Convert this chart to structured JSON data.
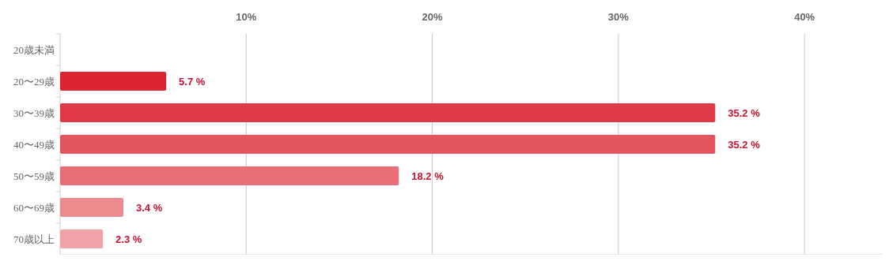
{
  "chart_data": {
    "type": "bar",
    "orientation": "horizontal",
    "categories": [
      "20歳未満",
      "20〜29歳",
      "30〜39歳",
      "40〜49歳",
      "50〜59歳",
      "60〜69歳",
      "70歳以上"
    ],
    "values": [
      0,
      5.7,
      35.2,
      35.2,
      18.2,
      3.4,
      2.3
    ],
    "value_labels": [
      null,
      "5.7 %",
      "35.2 %",
      "35.2 %",
      "18.2 %",
      "3.4 %",
      "2.3 %"
    ],
    "colors": [
      "#dc2430",
      "#dc2430",
      "#e03a47",
      "#e4545f",
      "#e86f77",
      "#ec8a8f",
      "#f0a2a6"
    ],
    "xlim": [
      0,
      44.2
    ],
    "xticks": [
      {
        "value": 10,
        "label": "10%"
      },
      {
        "value": 20,
        "label": "20%"
      },
      {
        "value": 30,
        "label": "30%"
      },
      {
        "value": 40,
        "label": "40%"
      }
    ],
    "grid": "x"
  }
}
